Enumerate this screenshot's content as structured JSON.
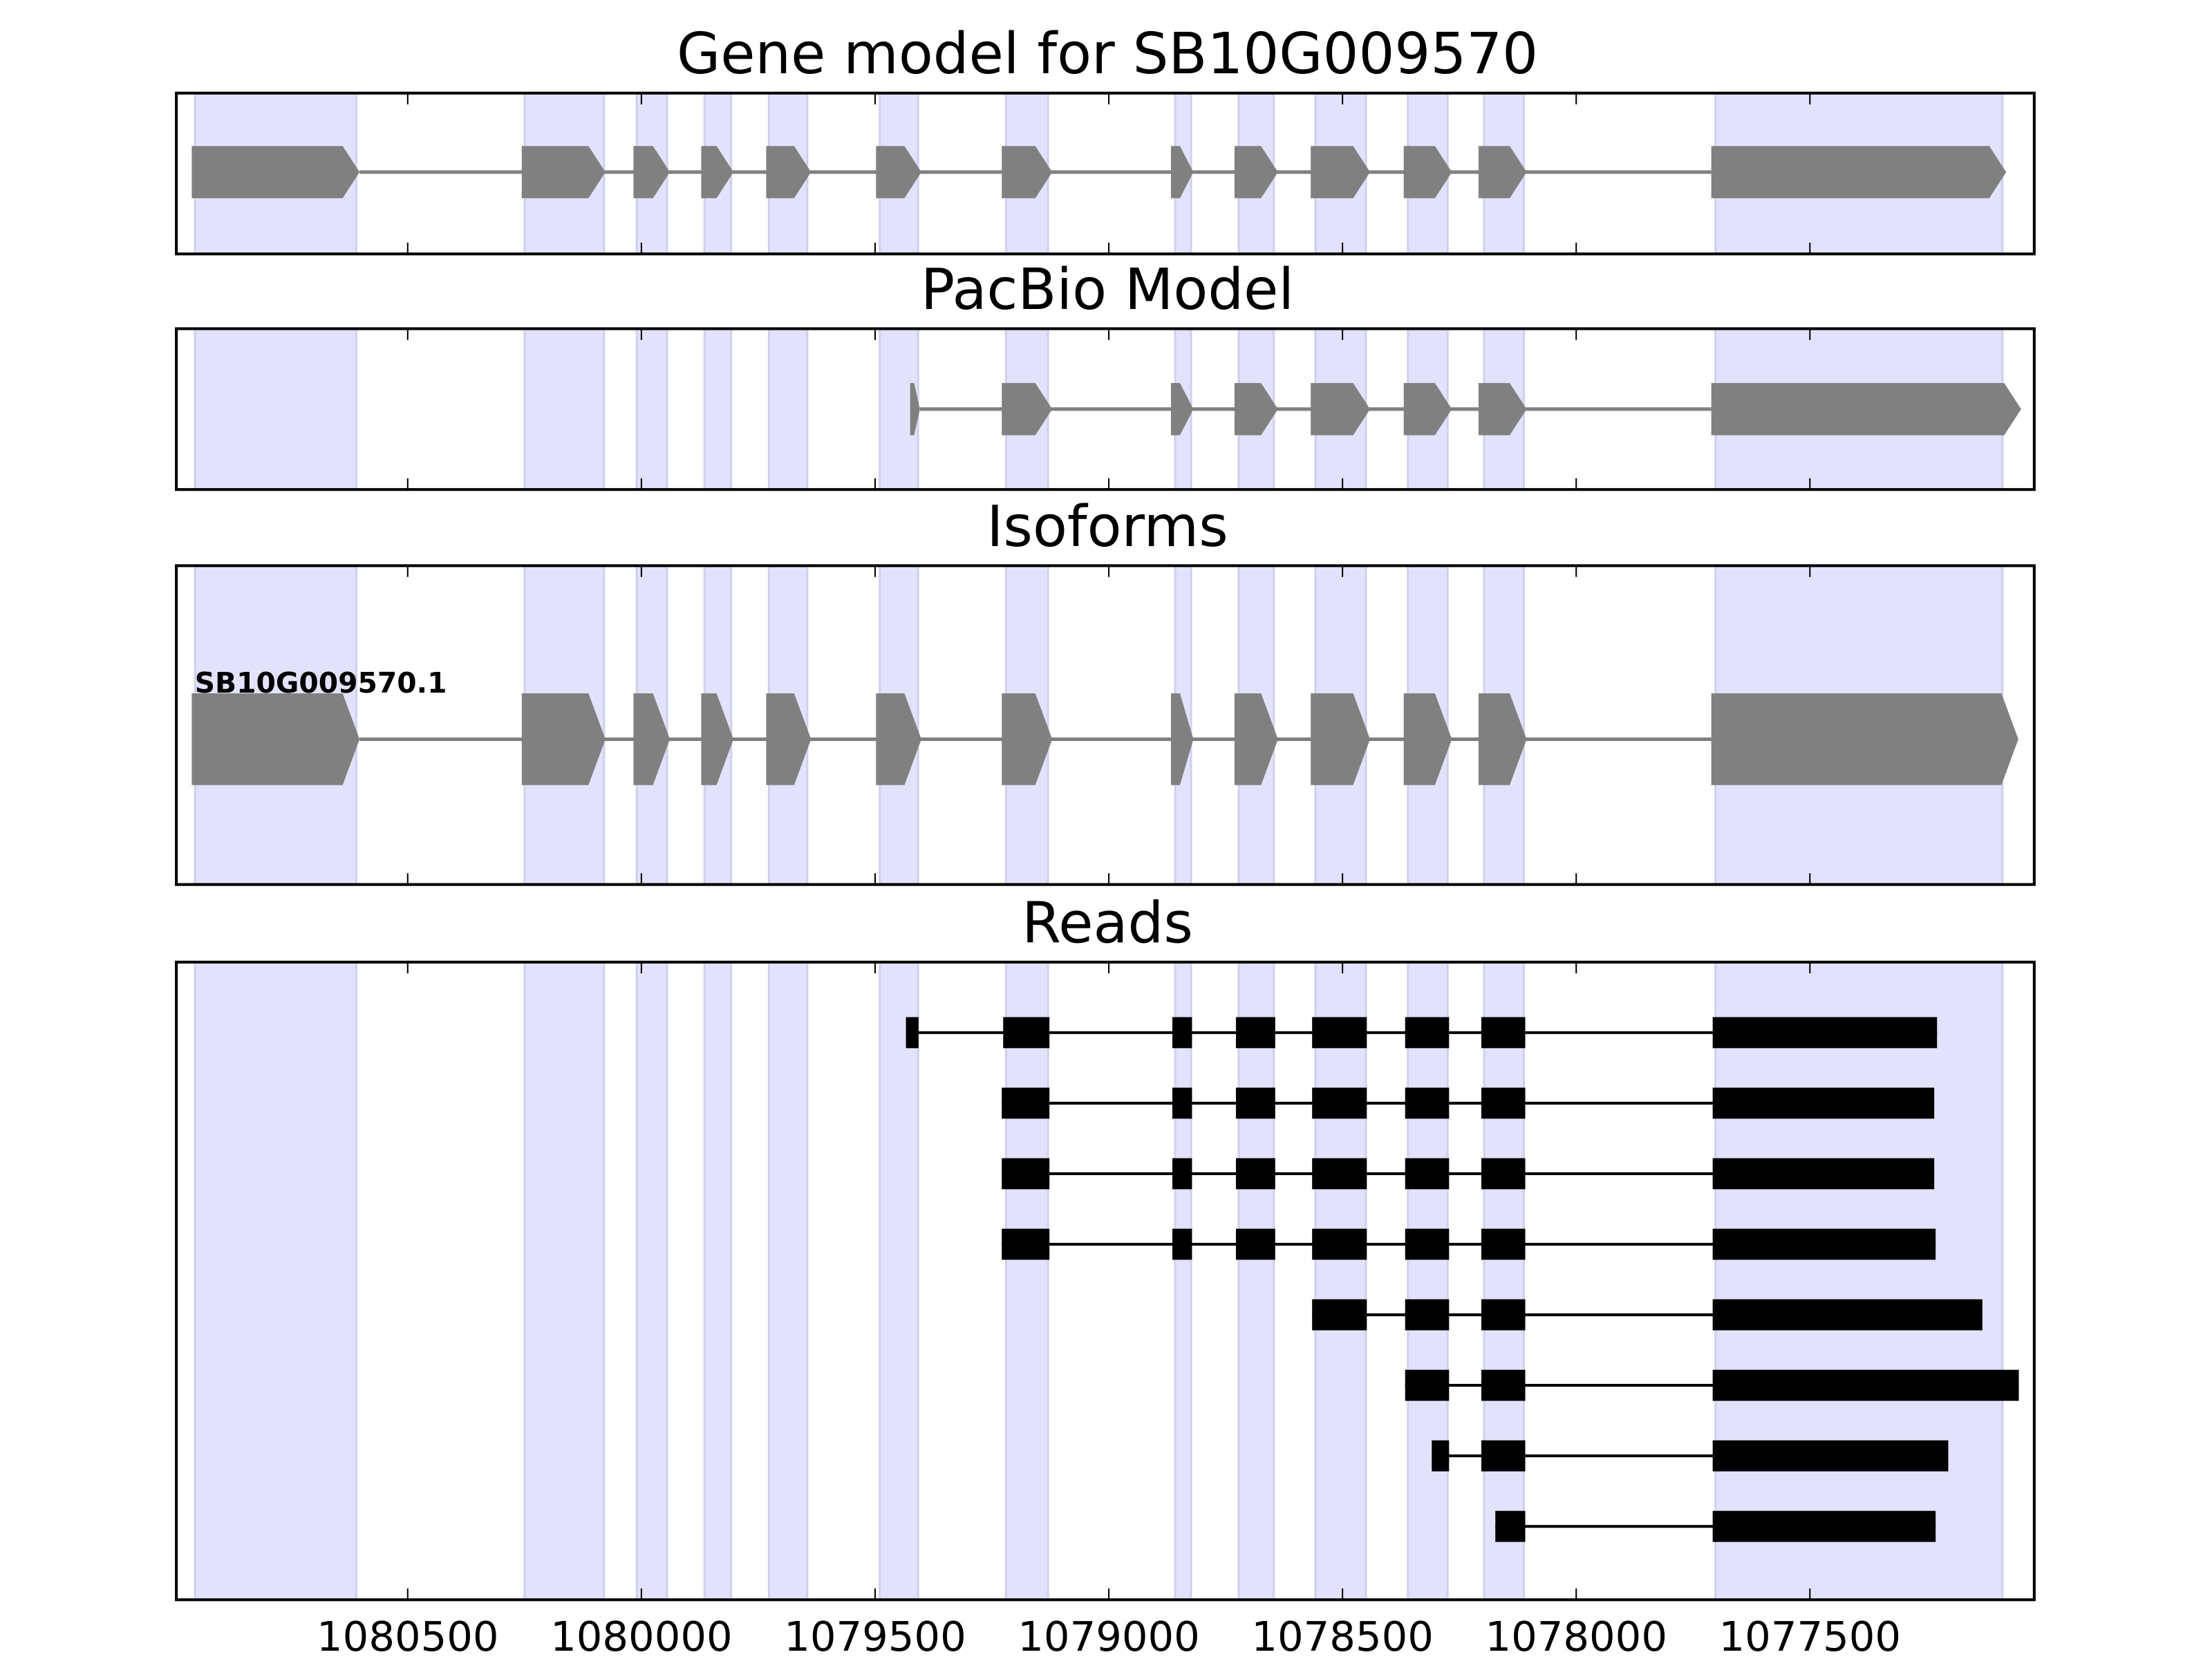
{
  "colors": {
    "exon_model": "#808080",
    "read": "#000000",
    "shade": "#e2e2fc",
    "shade_edge": "#d0d0ee",
    "frame": "#000000"
  },
  "chart_data": {
    "type": "gene-track",
    "x_axis": {
      "reversed": true,
      "xlim": [
        1080995,
        1077020
      ],
      "ticks": [
        1080500,
        1080000,
        1079500,
        1079000,
        1078500,
        1078000,
        1077500
      ],
      "tick_labels": [
        "1080500",
        "1080000",
        "1079500",
        "1079000",
        "1078500",
        "1078000",
        "1077500"
      ]
    },
    "shaded_regions": [
      [
        1080955,
        1080610
      ],
      [
        1080250,
        1080080
      ],
      [
        1080010,
        1079945
      ],
      [
        1079865,
        1079808
      ],
      [
        1079727,
        1079645
      ],
      [
        1079490,
        1079408
      ],
      [
        1079220,
        1079130
      ],
      [
        1078858,
        1078824
      ],
      [
        1078722,
        1078647
      ],
      [
        1078558,
        1078450
      ],
      [
        1078360,
        1078275
      ],
      [
        1078197,
        1078112
      ],
      [
        1077702,
        1077088
      ]
    ],
    "panels": [
      {
        "title": "Gene model for SB10G009570",
        "kind": "model",
        "exons": [
          [
            1080962,
            1080603
          ],
          [
            1080256,
            1080077
          ],
          [
            1080017,
            1079939
          ],
          [
            1079872,
            1079803
          ],
          [
            1079733,
            1079637
          ],
          [
            1079498,
            1079401
          ],
          [
            1079229,
            1079121
          ],
          [
            1078867,
            1078819
          ],
          [
            1078731,
            1078638
          ],
          [
            1078568,
            1078441
          ],
          [
            1078369,
            1078266
          ],
          [
            1078209,
            1078106
          ],
          [
            1077711,
            1077080
          ]
        ]
      },
      {
        "title": "PacBio Model",
        "kind": "model",
        "exons": [
          [
            1079425,
            1079404
          ],
          [
            1079229,
            1079121
          ],
          [
            1078867,
            1078819
          ],
          [
            1078731,
            1078638
          ],
          [
            1078568,
            1078441
          ],
          [
            1078369,
            1078266
          ],
          [
            1078209,
            1078106
          ],
          [
            1077711,
            1077048
          ]
        ]
      },
      {
        "title": "Isoforms",
        "kind": "model",
        "label": "SB10G009570.1",
        "exons": [
          [
            1080962,
            1080603
          ],
          [
            1080256,
            1080077
          ],
          [
            1080017,
            1079939
          ],
          [
            1079872,
            1079803
          ],
          [
            1079733,
            1079637
          ],
          [
            1079498,
            1079401
          ],
          [
            1079229,
            1079121
          ],
          [
            1078867,
            1078819
          ],
          [
            1078731,
            1078638
          ],
          [
            1078568,
            1078441
          ],
          [
            1078369,
            1078266
          ],
          [
            1078209,
            1078106
          ],
          [
            1077711,
            1077054
          ]
        ]
      },
      {
        "title": "Reads",
        "kind": "reads",
        "reads": [
          [
            [
              1079434,
              1079407
            ],
            [
              1079226,
              1079127
            ],
            [
              1078864,
              1078822
            ],
            [
              1078728,
              1078644
            ],
            [
              1078565,
              1078448
            ],
            [
              1078366,
              1078272
            ],
            [
              1078203,
              1078109
            ],
            [
              1077708,
              1077228
            ]
          ],
          [
            [
              1079229,
              1079127
            ],
            [
              1078864,
              1078822
            ],
            [
              1078728,
              1078644
            ],
            [
              1078565,
              1078448
            ],
            [
              1078366,
              1078272
            ],
            [
              1078203,
              1078109
            ],
            [
              1077708,
              1077234
            ]
          ],
          [
            [
              1079229,
              1079127
            ],
            [
              1078864,
              1078822
            ],
            [
              1078728,
              1078644
            ],
            [
              1078565,
              1078448
            ],
            [
              1078366,
              1078272
            ],
            [
              1078203,
              1078109
            ],
            [
              1077708,
              1077234
            ]
          ],
          [
            [
              1079229,
              1079127
            ],
            [
              1078864,
              1078822
            ],
            [
              1078728,
              1078644
            ],
            [
              1078565,
              1078448
            ],
            [
              1078366,
              1078272
            ],
            [
              1078203,
              1078109
            ],
            [
              1077708,
              1077231
            ]
          ],
          [
            [
              1078565,
              1078448
            ],
            [
              1078366,
              1078272
            ],
            [
              1078203,
              1078109
            ],
            [
              1077708,
              1077131
            ]
          ],
          [
            [
              1078366,
              1078272
            ],
            [
              1078203,
              1078109
            ],
            [
              1077708,
              1077053
            ]
          ],
          [
            [
              1078309,
              1078272
            ],
            [
              1078203,
              1078109
            ],
            [
              1077708,
              1077204
            ]
          ],
          [
            [
              1078173,
              1078109
            ],
            [
              1077708,
              1077231
            ]
          ]
        ]
      }
    ]
  }
}
